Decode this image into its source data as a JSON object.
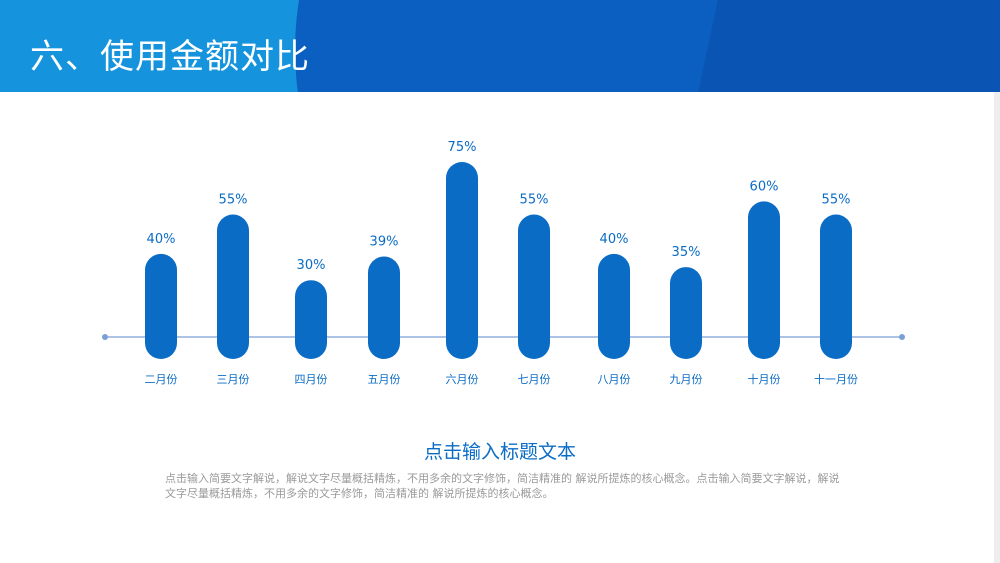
{
  "title": "六、使用金额对比",
  "subtitle": "点击输入标题文本",
  "description": "点击输入简要文字解说，解说文字尽量概括精炼，不用多余的文字修饰，简洁精准的 解说所提炼的核心概念。点击输入简要文字解说，解说文字尽量概括精炼，不用多余的文字修饰，简洁精准的 解说所提炼的核心概念。",
  "colors": {
    "header": "#1593dd",
    "header_dark": "#0b5fc0",
    "bar": "#0b6cc6",
    "axis": "#7a9fd6",
    "label": "#0b6cc6"
  },
  "chart_data": {
    "type": "bar",
    "categories": [
      "二月份",
      "三月份",
      "四月份",
      "五月份",
      "六月份",
      "七月份",
      "八月份",
      "九月份",
      "十月份",
      "十一月份"
    ],
    "values": [
      40,
      55,
      30,
      39,
      75,
      55,
      40,
      35,
      60,
      55
    ],
    "data_labels": [
      "40%",
      "55%",
      "30%",
      "39%",
      "75%",
      "55%",
      "40%",
      "35%",
      "60%",
      "55%"
    ],
    "unit": "%",
    "ylim": [
      0,
      75
    ],
    "grid": false,
    "legend": "none"
  }
}
